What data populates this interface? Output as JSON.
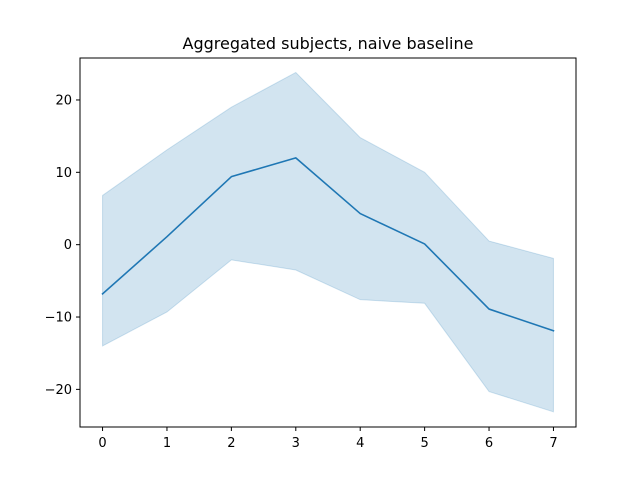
{
  "chart_data": {
    "type": "line",
    "title": "Aggregated subjects, naive baseline",
    "xlabel": "",
    "ylabel": "",
    "x": [
      0,
      1,
      2,
      3,
      4,
      5,
      6,
      7
    ],
    "xlim": [
      -0.35,
      7.35
    ],
    "ylim": [
      -25.2,
      25.8
    ],
    "xticks": [
      0,
      1,
      2,
      3,
      4,
      5,
      6,
      7
    ],
    "yticks": [
      -20,
      -10,
      0,
      10,
      20
    ],
    "ytick_labels": [
      "−20",
      "−10",
      "0",
      "10",
      "20"
    ],
    "grid": false,
    "series": [
      {
        "values": [
          -6.8,
          1.1,
          9.4,
          12.0,
          4.3,
          0.1,
          -8.9,
          -11.9
        ],
        "lower": [
          -14.0,
          -9.3,
          -2.1,
          -3.5,
          -7.6,
          -8.1,
          -20.3,
          -23.1
        ],
        "upper": [
          6.8,
          13.1,
          19.0,
          23.8,
          14.8,
          10.0,
          0.5,
          -1.9
        ],
        "color": "#1f77b4",
        "band_color": "#1f77b4"
      }
    ]
  }
}
